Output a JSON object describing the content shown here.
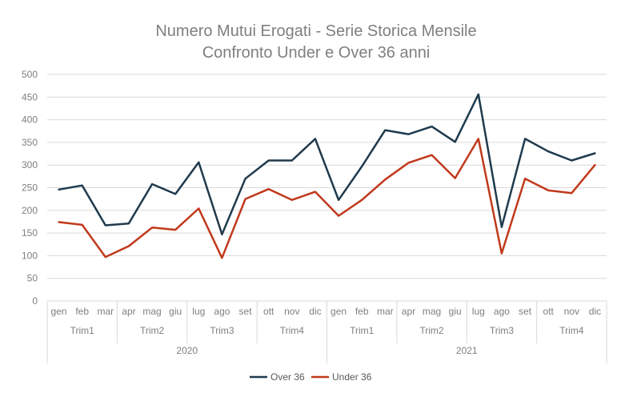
{
  "chart_data": {
    "type": "line",
    "title": "Numero Mutui Erogati - Serie Storica Mensile",
    "subtitle": "Confronto Under e Over 36 anni",
    "xlabel": "",
    "ylabel": "",
    "ylim": [
      0,
      500
    ],
    "yticks": [
      0,
      50,
      100,
      150,
      200,
      250,
      300,
      350,
      400,
      450,
      500
    ],
    "grid": true,
    "legend_position": "bottom",
    "years": [
      {
        "label": "2020",
        "quarters": [
          {
            "label": "Trim1",
            "months": [
              "gen",
              "feb",
              "mar"
            ]
          },
          {
            "label": "Trim2",
            "months": [
              "apr",
              "mag",
              "giu"
            ]
          },
          {
            "label": "Trim3",
            "months": [
              "lug",
              "ago",
              "set"
            ]
          },
          {
            "label": "Trim4",
            "months": [
              "ott",
              "nov",
              "dic"
            ]
          }
        ]
      },
      {
        "label": "2021",
        "quarters": [
          {
            "label": "Trim1",
            "months": [
              "gen",
              "feb",
              "mar"
            ]
          },
          {
            "label": "Trim2",
            "months": [
              "apr",
              "mag",
              "giu"
            ]
          },
          {
            "label": "Trim3",
            "months": [
              "lug",
              "ago",
              "set"
            ]
          },
          {
            "label": "Trim4",
            "months": [
              "ott",
              "nov",
              "dic"
            ]
          }
        ]
      }
    ],
    "series": [
      {
        "name": "Over 36",
        "color": "#1f3a4d",
        "values": [
          246,
          255,
          167,
          171,
          258,
          236,
          306,
          147,
          270,
          310,
          310,
          358,
          223,
          297,
          377,
          368,
          385,
          351,
          456,
          163,
          358,
          330,
          310,
          326
        ]
      },
      {
        "name": "Under 36",
        "color": "#c0391b",
        "values": [
          174,
          168,
          97,
          121,
          162,
          157,
          204,
          95,
          225,
          247,
          223,
          241,
          188,
          223,
          268,
          305,
          322,
          271,
          358,
          105,
          270,
          244,
          238,
          300
        ]
      }
    ]
  }
}
